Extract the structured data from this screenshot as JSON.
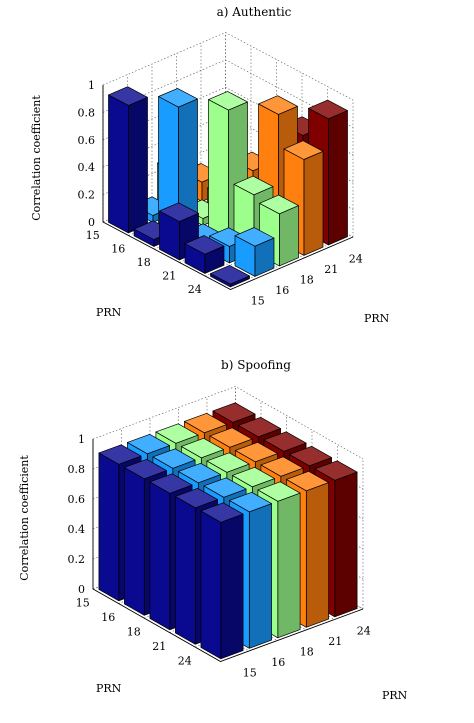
{
  "chart_data": [
    {
      "type": "bar3d",
      "title": "a) Authentic",
      "zlabel": "Correlation coefficient",
      "xlabel": "PRN",
      "ylabel": "PRN",
      "zlim": [
        0,
        1
      ],
      "zticks": [
        "0",
        "0.2",
        "0.4",
        "0.6",
        "0.8",
        "1"
      ],
      "row_prns": [
        "15",
        "16",
        "18",
        "21",
        "24"
      ],
      "col_prns": [
        "15",
        "16",
        "18",
        "21",
        "24"
      ],
      "series": [
        {
          "name": "15",
          "color": "#0a0a90",
          "values": [
            0.93,
            0.05,
            0.28,
            0.14,
            0.02
          ]
        },
        {
          "name": "16",
          "color": "#199cff",
          "values": [
            0.05,
            0.94,
            0.05,
            0.12,
            0.22
          ]
        },
        {
          "name": "18",
          "color": "#9cff8c",
          "values": [
            0.28,
            0.05,
            0.94,
            0.42,
            0.38
          ]
        },
        {
          "name": "21",
          "color": "#ff7f0f",
          "values": [
            0.14,
            0.12,
            0.42,
            0.93,
            0.7
          ]
        },
        {
          "name": "24",
          "color": "#800000",
          "values": [
            0.02,
            0.22,
            0.38,
            0.7,
            0.92
          ]
        }
      ]
    },
    {
      "type": "bar3d",
      "title": "b) Spoofing",
      "zlabel": "Correlation coefficient",
      "xlabel": "PRN",
      "ylabel": "PRN",
      "zlim": [
        0,
        1
      ],
      "zticks": [
        "0",
        "0.2",
        "0.4",
        "0.6",
        "0.8",
        "1"
      ],
      "row_prns": [
        "15",
        "16",
        "18",
        "21",
        "24"
      ],
      "col_prns": [
        "15",
        "16",
        "18",
        "21",
        "24"
      ],
      "series": [
        {
          "name": "15",
          "color": "#0a0a90",
          "values": [
            0.91,
            0.91,
            0.91,
            0.91,
            0.91
          ]
        },
        {
          "name": "16",
          "color": "#199cff",
          "values": [
            0.91,
            0.91,
            0.91,
            0.91,
            0.91
          ]
        },
        {
          "name": "18",
          "color": "#9cff8c",
          "values": [
            0.91,
            0.91,
            0.91,
            0.91,
            0.91
          ]
        },
        {
          "name": "21",
          "color": "#ff7f0f",
          "values": [
            0.91,
            0.91,
            0.91,
            0.91,
            0.91
          ]
        },
        {
          "name": "24",
          "color": "#800000",
          "values": [
            0.91,
            0.91,
            0.91,
            0.91,
            0.91
          ]
        }
      ]
    }
  ]
}
